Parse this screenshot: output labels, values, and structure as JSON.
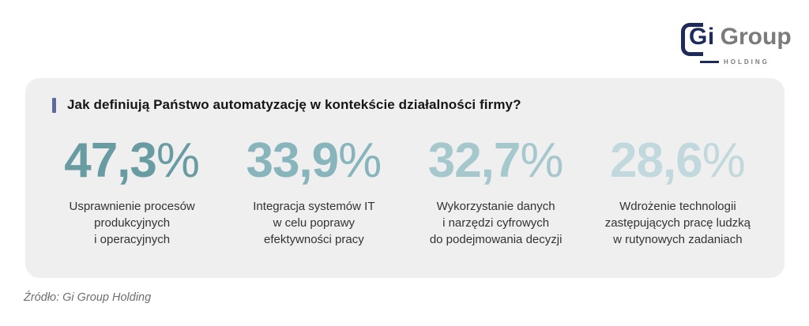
{
  "logo": {
    "gi": "Gi",
    "group": "Group",
    "holding": "HOLDING",
    "navy": "#1d2b5a",
    "gray": "#7b7b7b"
  },
  "panel": {
    "background": "#efefef",
    "accent_color": "#5d6b9b",
    "question": "Jak definiują Państwo automatyzację w kontekście działalności firmy?",
    "stats": [
      {
        "value": "47,3",
        "suffix": "%",
        "color": "#689ca2",
        "label_lines": [
          "Usprawnienie procesów",
          "produkcyjnych",
          "i operacyjnych"
        ]
      },
      {
        "value": "33,9",
        "suffix": "%",
        "color": "#87b5bb",
        "label_lines": [
          "Integracja systemów IT",
          "w celu poprawy",
          "efektywności pracy"
        ]
      },
      {
        "value": "32,7",
        "suffix": "%",
        "color": "#a5c8cd",
        "label_lines": [
          "Wykorzystanie danych",
          "i narzędzi cyfrowych",
          "do podejmowania decyzji"
        ]
      },
      {
        "value": "28,6",
        "suffix": "%",
        "color": "#c1d9dc",
        "label_lines": [
          "Wdrożenie technologii",
          "zastępujących pracę ludzką",
          "w rutynowych zadaniach"
        ]
      }
    ]
  },
  "source": "Źródło: Gi Group Holding",
  "chart_data": {
    "type": "table",
    "title": "Jak definiują Państwo automatyzację w kontekście działalności firmy?",
    "categories": [
      "Usprawnienie procesów produkcyjnych i operacyjnych",
      "Integracja systemów IT w celu poprawy efektywności pracy",
      "Wykorzystanie danych i narzędzi cyfrowych do podejmowania decyzji",
      "Wdrożenie technologii zastępujących pracę ludzką w rutynowych zadaniach"
    ],
    "values": [
      47.3,
      33.9,
      32.7,
      28.6
    ],
    "unit": "%",
    "source": "Źródło: Gi Group Holding",
    "legend_position": "none",
    "grid": false
  }
}
